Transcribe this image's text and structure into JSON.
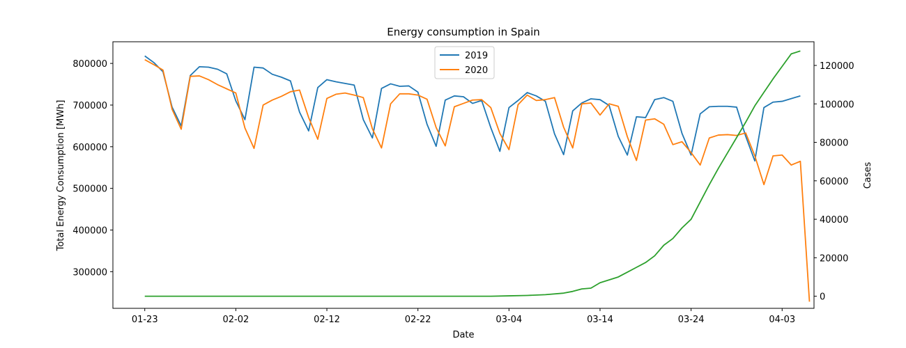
{
  "chart_data": {
    "type": "line",
    "title": "Energy consumption in Spain",
    "xlabel": "Date",
    "ylabel": "Total Energy Consumption [MWh]",
    "y2label": "Cases",
    "xtick_labels": [
      "01-23",
      "02-02",
      "02-12",
      "02-22",
      "03-04",
      "03-14",
      "03-24",
      "04-03"
    ],
    "xticks": [
      0,
      10,
      20,
      30,
      40,
      50,
      60,
      70
    ],
    "xlim": [
      -3.5,
      73.5
    ],
    "ylim": [
      212000,
      852000
    ],
    "yticks": [
      300000,
      400000,
      500000,
      600000,
      700000,
      800000
    ],
    "y2lim": [
      -6300,
      132300
    ],
    "y2ticks": [
      0,
      20000,
      40000,
      60000,
      80000,
      100000,
      120000
    ],
    "legend_position": "top-center",
    "colors": {
      "s2019": "#1f77b4",
      "s2020": "#ff7f0e",
      "cases": "#2ca02c",
      "cases_label": "#2ca02c"
    },
    "series": [
      {
        "name": "2019",
        "axis": "left",
        "x": [
          0,
          1,
          2,
          3,
          4,
          5,
          6,
          7,
          8,
          9,
          10,
          11,
          12,
          13,
          14,
          15,
          16,
          17,
          18,
          19,
          20,
          21,
          22,
          23,
          24,
          25,
          26,
          27,
          28,
          29,
          30,
          31,
          32,
          33,
          34,
          35,
          36,
          37,
          38,
          39,
          40,
          41,
          42,
          43,
          44,
          45,
          46,
          47,
          48,
          49,
          50,
          51,
          52,
          53,
          54,
          55,
          56,
          57,
          58,
          59,
          60,
          61,
          62,
          63,
          64,
          65,
          66,
          67,
          68,
          69,
          70,
          72
        ],
        "values": [
          818000,
          802000,
          780000,
          695000,
          650000,
          771000,
          792000,
          791000,
          786000,
          775000,
          710000,
          665000,
          791000,
          789000,
          774000,
          767000,
          758000,
          683000,
          638000,
          742000,
          761000,
          756000,
          752000,
          748000,
          665000,
          621000,
          740000,
          751000,
          745000,
          746000,
          731000,
          654000,
          601000,
          712000,
          722000,
          720000,
          704000,
          711000,
          646000,
          589000,
          694000,
          711000,
          730000,
          722000,
          709000,
          631000,
          581000,
          686000,
          705000,
          715000,
          713000,
          699000,
          625000,
          580000,
          672000,
          670000,
          713000,
          718000,
          709000,
          632000,
          580000,
          679000,
          696000,
          697000,
          697000,
          695000,
          625000,
          566000,
          694000,
          707000,
          709000,
          722000
        ]
      },
      {
        "name": "2020",
        "axis": "left",
        "x": [
          0,
          1,
          2,
          3,
          4,
          5,
          6,
          7,
          8,
          9,
          10,
          11,
          12,
          13,
          14,
          15,
          16,
          17,
          18,
          19,
          20,
          21,
          22,
          23,
          24,
          25,
          26,
          27,
          28,
          29,
          30,
          31,
          32,
          33,
          34,
          35,
          36,
          37,
          38,
          39,
          40,
          41,
          42,
          43,
          44,
          45,
          46,
          47,
          48,
          49,
          50,
          51,
          52,
          53,
          54,
          55,
          56,
          57,
          58,
          59,
          60,
          61,
          62,
          63,
          64,
          65,
          66,
          67,
          68,
          69,
          70,
          71,
          72
        ],
        "values": [
          809000,
          797000,
          784000,
          690000,
          642000,
          769000,
          770000,
          761000,
          749000,
          739000,
          729000,
          645000,
          596000,
          700000,
          712000,
          721000,
          732000,
          736000,
          670000,
          618000,
          716000,
          726000,
          729000,
          724000,
          718000,
          643000,
          597000,
          703000,
          727000,
          727000,
          724000,
          714000,
          646000,
          602000,
          696000,
          704000,
          712000,
          713000,
          694000,
          632000,
          593000,
          701000,
          724000,
          711000,
          713000,
          718000,
          647000,
          597000,
          703000,
          705000,
          676000,
          703000,
          697000,
          624000,
          567000,
          664000,
          667000,
          654000,
          605000,
          612000,
          586000,
          556000,
          621000,
          628000,
          629000,
          627000,
          633000,
          578000,
          509000,
          578000,
          580000,
          556000,
          565000
        ]
      },
      {
        "name": "Cases",
        "axis": "right",
        "x": [
          0,
          38,
          40,
          42,
          44,
          46,
          47,
          48,
          49,
          50,
          51,
          52,
          53,
          54,
          55,
          56,
          57,
          58,
          59,
          60,
          61,
          62,
          63,
          64,
          65,
          66,
          67,
          68,
          69,
          70,
          71,
          72
        ],
        "values": [
          0,
          0,
          200,
          400,
          800,
          1600,
          2500,
          3800,
          4200,
          7000,
          8500,
          10000,
          12500,
          15000,
          17500,
          21000,
          26500,
          30000,
          35500,
          40000,
          49000,
          58000,
          66500,
          74500,
          82500,
          90500,
          99000,
          106000,
          113000,
          119500,
          126000,
          127500
        ]
      }
    ],
    "final_drop": {
      "series": "2020",
      "x": 73,
      "value": 228000
    }
  }
}
